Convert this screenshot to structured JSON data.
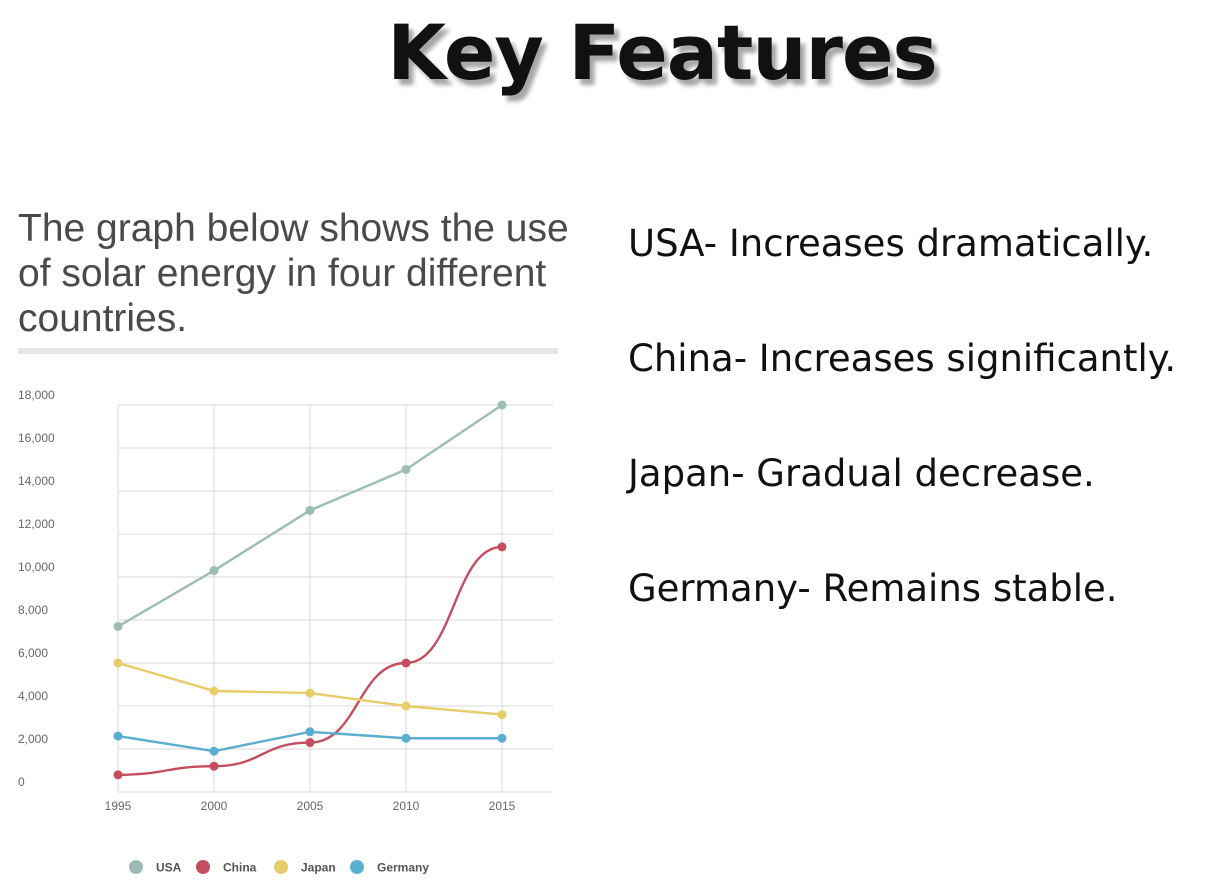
{
  "slide": {
    "title": "Key Features",
    "intro": "The graph below shows the use of solar energy in four different countries."
  },
  "features": [
    {
      "text": "USA- Increases dramatically."
    },
    {
      "text": "China- Increases significantly."
    },
    {
      "text": "Japan- Gradual decrease."
    },
    {
      "text": "Germany- Remains stable."
    }
  ],
  "chart_data": {
    "type": "line",
    "title": "",
    "xlabel": "",
    "ylabel": "",
    "x": [
      "1995",
      "2000",
      "2005",
      "2010",
      "2015"
    ],
    "ylim": [
      0,
      18000
    ],
    "yticks": [
      0,
      2000,
      4000,
      6000,
      8000,
      10000,
      12000,
      14000,
      16000,
      18000
    ],
    "ytick_labels": [
      "0",
      "2,000",
      "4,000",
      "6,000",
      "8,000",
      "10,000",
      "12,000",
      "14,000",
      "16,000",
      "18,000"
    ],
    "grid": true,
    "legend_position": "bottom",
    "series": [
      {
        "name": "USA",
        "color": "#9dbcb3",
        "values": [
          7700,
          10300,
          13100,
          15000,
          18000
        ]
      },
      {
        "name": "China",
        "color": "#c44e5e",
        "values": [
          800,
          1200,
          2300,
          6000,
          11400
        ]
      },
      {
        "name": "Japan",
        "color": "#e8cc6a",
        "values": [
          6000,
          4700,
          4600,
          4000,
          3600
        ]
      },
      {
        "name": "Germany",
        "color": "#5aaed0",
        "values": [
          2600,
          1900,
          2800,
          2500,
          2500
        ]
      }
    ]
  }
}
